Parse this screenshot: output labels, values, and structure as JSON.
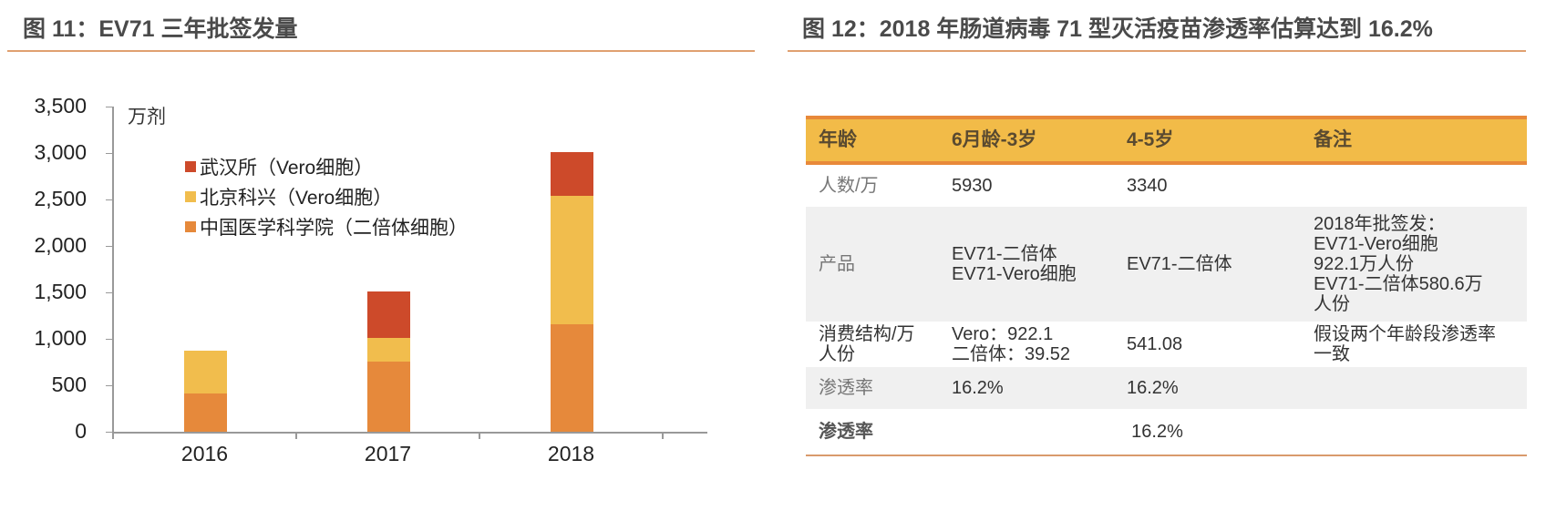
{
  "figure11": {
    "title": "图 11：EV71 三年批签发量",
    "unit_label": "万剂"
  },
  "figure12": {
    "title": "图 12：2018 年肠道病毒 71 型灭活疫苗渗透率估算达到 16.2%",
    "table": {
      "headers": [
        "年龄",
        "6月龄-3岁",
        "4-5岁",
        "备注"
      ],
      "rows": [
        {
          "label": "人数/万",
          "c1": "5930",
          "c2": "3340",
          "c3": ""
        },
        {
          "label": "产品",
          "c1": "EV71-二倍体\nEV71-Vero细胞",
          "c2": "EV71-二倍体",
          "c3": "2018年批签发：\nEV71-Vero细胞\n922.1万人份\nEV71-二倍体580.6万\n人份"
        },
        {
          "label": "消费结构/万\n人份",
          "c1": "Vero：922.1\n二倍体：39.52",
          "c2": "541.08",
          "c3": "假设两个年龄段渗透率\n一致"
        },
        {
          "label": "渗透率",
          "c1": "16.2%",
          "c2": "16.2%",
          "c3": ""
        }
      ],
      "summary": {
        "label": "渗透率",
        "value": "16.2%"
      }
    },
    "colors": {
      "header_bg": "#f2bb48",
      "header_border": "#e8893a",
      "row_alt": "#f0f0f0"
    }
  },
  "chart_data": {
    "type": "bar",
    "stacked": true,
    "title": "EV71 三年批签发量",
    "xlabel": "",
    "ylabel": "万剂",
    "ylim": [
      0,
      3500
    ],
    "yticks": [
      "0",
      "500",
      "1,000",
      "1,500",
      "2,000",
      "2,500",
      "3,000",
      "3,500"
    ],
    "categories": [
      "2016",
      "2017",
      "2018"
    ],
    "series": [
      {
        "name": "中国医学科学院（二倍体细胞）",
        "color": "#e6893b",
        "values": [
          415,
          755,
          1157
        ]
      },
      {
        "name": "北京科兴（Vero细胞）",
        "color": "#f1bd4d",
        "values": [
          460,
          255,
          1383
        ]
      },
      {
        "name": "武汉所（Vero细胞）",
        "color": "#cd4a2a",
        "values": [
          0,
          500,
          470
        ]
      }
    ],
    "legend": [
      "武汉所（Vero细胞）",
      "北京科兴（Vero细胞）",
      "中国医学科学院（二倍体细胞）"
    ],
    "legend_position": "upper-left inside",
    "grid": false
  }
}
